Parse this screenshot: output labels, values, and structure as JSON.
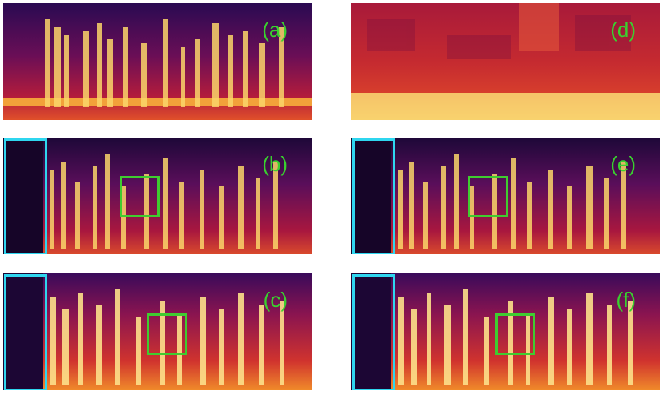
{
  "panels": [
    {
      "id": "a",
      "label": "(a)",
      "kind": "clean",
      "has_cyan_box": false,
      "has_green_box": false
    },
    {
      "id": "b",
      "label": "(b)",
      "kind": "enhanced",
      "has_cyan_box": true,
      "has_green_box": true
    },
    {
      "id": "c",
      "label": "(c)",
      "kind": "enhanced-bright",
      "has_cyan_box": true,
      "has_green_box": true
    },
    {
      "id": "d",
      "label": "(d)",
      "kind": "noisy",
      "has_cyan_box": false,
      "has_green_box": false
    },
    {
      "id": "e",
      "label": "(e)",
      "kind": "enhanced",
      "has_cyan_box": true,
      "has_green_box": true
    },
    {
      "id": "f",
      "label": "(f)",
      "kind": "enhanced-bright",
      "has_cyan_box": true,
      "has_green_box": true
    }
  ],
  "colors": {
    "background": "#ffffff",
    "label": "#39d12f",
    "cyan_box": "#2fd6ef",
    "green_box": "#3fcc30",
    "spectrogram_dark": "#1a0630",
    "spectrogram_mid": "#b0183a",
    "spectrogram_bright": "#fde98a"
  }
}
